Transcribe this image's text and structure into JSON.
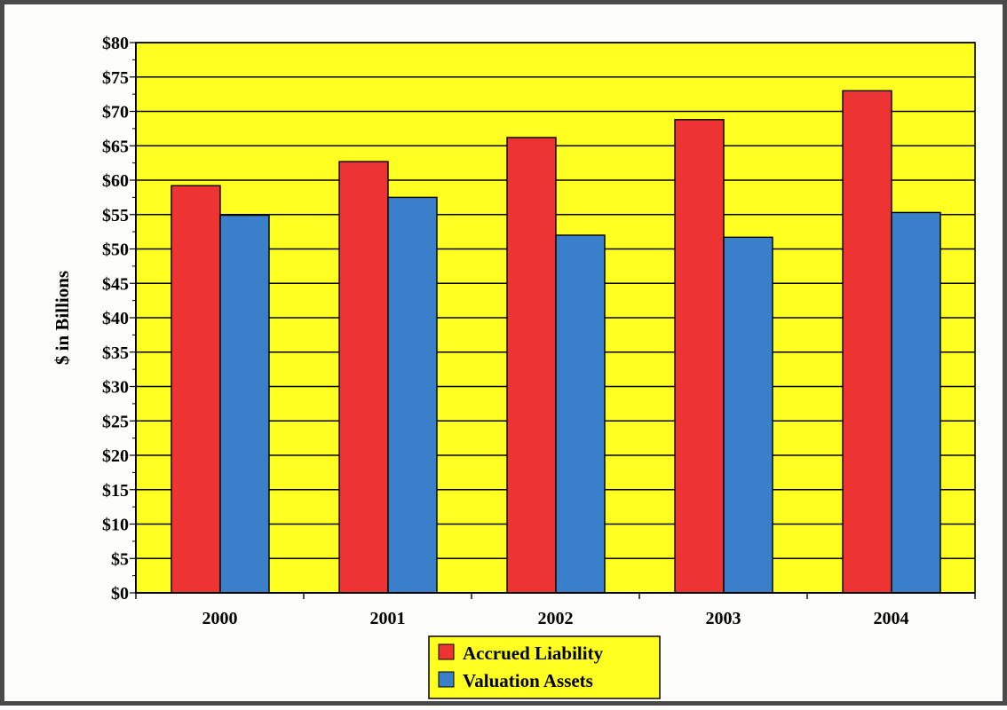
{
  "chart_data": {
    "type": "bar",
    "ylabel": "$ in Billions",
    "categories": [
      "2000",
      "2001",
      "2002",
      "2003",
      "2004"
    ],
    "ylim": [
      0,
      80
    ],
    "ytick_step": 5,
    "ytick_labels": [
      "$0",
      "$5",
      "$10",
      "$15",
      "$20",
      "$25",
      "$30",
      "$35",
      "$40",
      "$45",
      "$50",
      "$55",
      "$60",
      "$65",
      "$70",
      "$75",
      "$80"
    ],
    "grid": true,
    "legend_position": "bottom",
    "plot_background": "#ffff22",
    "series": [
      {
        "name": "Accrued Liability",
        "color": "#ee3333",
        "values": [
          59.2,
          62.7,
          66.2,
          68.8,
          73.0
        ]
      },
      {
        "name": "Valuation Assets",
        "color": "#3a7fc9",
        "values": [
          54.9,
          57.5,
          52.0,
          51.7,
          55.3
        ]
      }
    ]
  }
}
